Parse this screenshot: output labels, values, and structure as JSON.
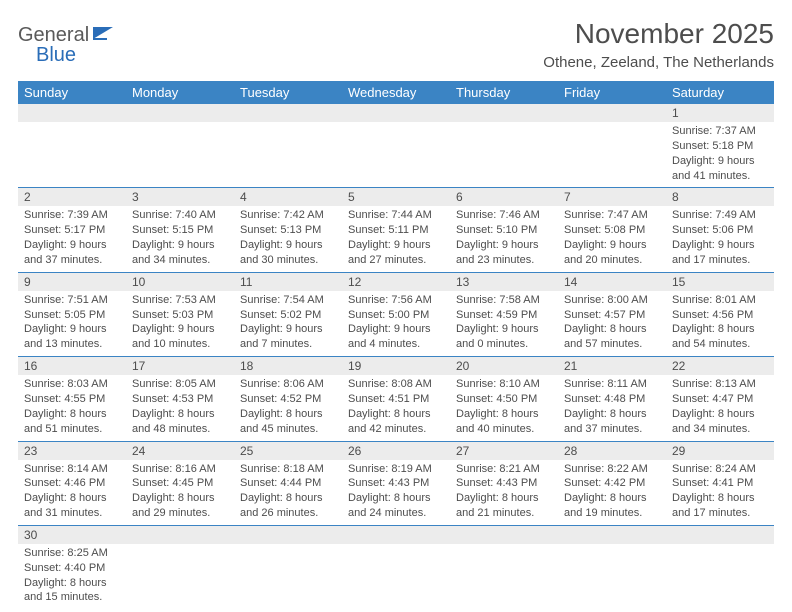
{
  "logo": {
    "part1": "General",
    "part2": "Blue"
  },
  "title": "November 2025",
  "location": "Othene, Zeeland, The Netherlands",
  "header_bg": "#3b84c4",
  "row_border": "#3b84c4",
  "daynum_bg": "#ececec",
  "text_color": "#4d4d4d",
  "day_headers": [
    "Sunday",
    "Monday",
    "Tuesday",
    "Wednesday",
    "Thursday",
    "Friday",
    "Saturday"
  ],
  "weeks": [
    [
      {
        "n": "",
        "sr": "",
        "ss": "",
        "dl": ""
      },
      {
        "n": "",
        "sr": "",
        "ss": "",
        "dl": ""
      },
      {
        "n": "",
        "sr": "",
        "ss": "",
        "dl": ""
      },
      {
        "n": "",
        "sr": "",
        "ss": "",
        "dl": ""
      },
      {
        "n": "",
        "sr": "",
        "ss": "",
        "dl": ""
      },
      {
        "n": "",
        "sr": "",
        "ss": "",
        "dl": ""
      },
      {
        "n": "1",
        "sr": "Sunrise: 7:37 AM",
        "ss": "Sunset: 5:18 PM",
        "dl": "Daylight: 9 hours and 41 minutes."
      }
    ],
    [
      {
        "n": "2",
        "sr": "Sunrise: 7:39 AM",
        "ss": "Sunset: 5:17 PM",
        "dl": "Daylight: 9 hours and 37 minutes."
      },
      {
        "n": "3",
        "sr": "Sunrise: 7:40 AM",
        "ss": "Sunset: 5:15 PM",
        "dl": "Daylight: 9 hours and 34 minutes."
      },
      {
        "n": "4",
        "sr": "Sunrise: 7:42 AM",
        "ss": "Sunset: 5:13 PM",
        "dl": "Daylight: 9 hours and 30 minutes."
      },
      {
        "n": "5",
        "sr": "Sunrise: 7:44 AM",
        "ss": "Sunset: 5:11 PM",
        "dl": "Daylight: 9 hours and 27 minutes."
      },
      {
        "n": "6",
        "sr": "Sunrise: 7:46 AM",
        "ss": "Sunset: 5:10 PM",
        "dl": "Daylight: 9 hours and 23 minutes."
      },
      {
        "n": "7",
        "sr": "Sunrise: 7:47 AM",
        "ss": "Sunset: 5:08 PM",
        "dl": "Daylight: 9 hours and 20 minutes."
      },
      {
        "n": "8",
        "sr": "Sunrise: 7:49 AM",
        "ss": "Sunset: 5:06 PM",
        "dl": "Daylight: 9 hours and 17 minutes."
      }
    ],
    [
      {
        "n": "9",
        "sr": "Sunrise: 7:51 AM",
        "ss": "Sunset: 5:05 PM",
        "dl": "Daylight: 9 hours and 13 minutes."
      },
      {
        "n": "10",
        "sr": "Sunrise: 7:53 AM",
        "ss": "Sunset: 5:03 PM",
        "dl": "Daylight: 9 hours and 10 minutes."
      },
      {
        "n": "11",
        "sr": "Sunrise: 7:54 AM",
        "ss": "Sunset: 5:02 PM",
        "dl": "Daylight: 9 hours and 7 minutes."
      },
      {
        "n": "12",
        "sr": "Sunrise: 7:56 AM",
        "ss": "Sunset: 5:00 PM",
        "dl": "Daylight: 9 hours and 4 minutes."
      },
      {
        "n": "13",
        "sr": "Sunrise: 7:58 AM",
        "ss": "Sunset: 4:59 PM",
        "dl": "Daylight: 9 hours and 0 minutes."
      },
      {
        "n": "14",
        "sr": "Sunrise: 8:00 AM",
        "ss": "Sunset: 4:57 PM",
        "dl": "Daylight: 8 hours and 57 minutes."
      },
      {
        "n": "15",
        "sr": "Sunrise: 8:01 AM",
        "ss": "Sunset: 4:56 PM",
        "dl": "Daylight: 8 hours and 54 minutes."
      }
    ],
    [
      {
        "n": "16",
        "sr": "Sunrise: 8:03 AM",
        "ss": "Sunset: 4:55 PM",
        "dl": "Daylight: 8 hours and 51 minutes."
      },
      {
        "n": "17",
        "sr": "Sunrise: 8:05 AM",
        "ss": "Sunset: 4:53 PM",
        "dl": "Daylight: 8 hours and 48 minutes."
      },
      {
        "n": "18",
        "sr": "Sunrise: 8:06 AM",
        "ss": "Sunset: 4:52 PM",
        "dl": "Daylight: 8 hours and 45 minutes."
      },
      {
        "n": "19",
        "sr": "Sunrise: 8:08 AM",
        "ss": "Sunset: 4:51 PM",
        "dl": "Daylight: 8 hours and 42 minutes."
      },
      {
        "n": "20",
        "sr": "Sunrise: 8:10 AM",
        "ss": "Sunset: 4:50 PM",
        "dl": "Daylight: 8 hours and 40 minutes."
      },
      {
        "n": "21",
        "sr": "Sunrise: 8:11 AM",
        "ss": "Sunset: 4:48 PM",
        "dl": "Daylight: 8 hours and 37 minutes."
      },
      {
        "n": "22",
        "sr": "Sunrise: 8:13 AM",
        "ss": "Sunset: 4:47 PM",
        "dl": "Daylight: 8 hours and 34 minutes."
      }
    ],
    [
      {
        "n": "23",
        "sr": "Sunrise: 8:14 AM",
        "ss": "Sunset: 4:46 PM",
        "dl": "Daylight: 8 hours and 31 minutes."
      },
      {
        "n": "24",
        "sr": "Sunrise: 8:16 AM",
        "ss": "Sunset: 4:45 PM",
        "dl": "Daylight: 8 hours and 29 minutes."
      },
      {
        "n": "25",
        "sr": "Sunrise: 8:18 AM",
        "ss": "Sunset: 4:44 PM",
        "dl": "Daylight: 8 hours and 26 minutes."
      },
      {
        "n": "26",
        "sr": "Sunrise: 8:19 AM",
        "ss": "Sunset: 4:43 PM",
        "dl": "Daylight: 8 hours and 24 minutes."
      },
      {
        "n": "27",
        "sr": "Sunrise: 8:21 AM",
        "ss": "Sunset: 4:43 PM",
        "dl": "Daylight: 8 hours and 21 minutes."
      },
      {
        "n": "28",
        "sr": "Sunrise: 8:22 AM",
        "ss": "Sunset: 4:42 PM",
        "dl": "Daylight: 8 hours and 19 minutes."
      },
      {
        "n": "29",
        "sr": "Sunrise: 8:24 AM",
        "ss": "Sunset: 4:41 PM",
        "dl": "Daylight: 8 hours and 17 minutes."
      }
    ],
    [
      {
        "n": "30",
        "sr": "Sunrise: 8:25 AM",
        "ss": "Sunset: 4:40 PM",
        "dl": "Daylight: 8 hours and 15 minutes."
      },
      {
        "n": "",
        "sr": "",
        "ss": "",
        "dl": ""
      },
      {
        "n": "",
        "sr": "",
        "ss": "",
        "dl": ""
      },
      {
        "n": "",
        "sr": "",
        "ss": "",
        "dl": ""
      },
      {
        "n": "",
        "sr": "",
        "ss": "",
        "dl": ""
      },
      {
        "n": "",
        "sr": "",
        "ss": "",
        "dl": ""
      },
      {
        "n": "",
        "sr": "",
        "ss": "",
        "dl": ""
      }
    ]
  ]
}
